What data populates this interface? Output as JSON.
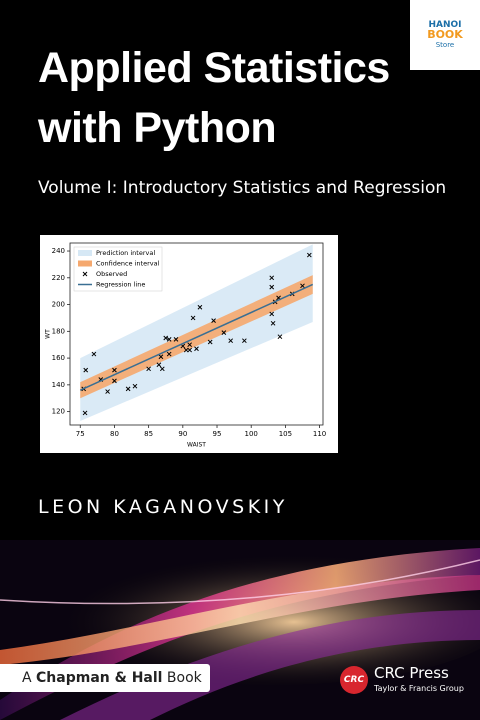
{
  "cover": {
    "title_lines": [
      "Applied Statistics",
      "with Python"
    ],
    "subtitle": "Volume I: Introductory Statistics and Regression",
    "author": "LEON KAGANOVSKIY",
    "imprint": [
      "A",
      "Chapman & Hall",
      "Book"
    ],
    "publisher": "CRC Press",
    "publisher_group": "Taylor & Francis Group",
    "publisher_logo": "CRC",
    "store": [
      "HANOI",
      "BOOK",
      "Store"
    ]
  },
  "chart_data": {
    "type": "scatter",
    "xlabel": "WAIST",
    "ylabel": "WT",
    "xlim": [
      73.5,
      110.5
    ],
    "ylim": [
      110,
      246
    ],
    "xticks": [
      75,
      80,
      85,
      90,
      95,
      100,
      105,
      110
    ],
    "yticks": [
      120,
      140,
      160,
      180,
      200,
      220,
      240
    ],
    "legend": "upper-left",
    "series": [
      {
        "name": "Prediction interval",
        "kind": "band",
        "color": "#d6e8f5",
        "x": [
          75,
          109
        ],
        "lower": [
          113,
          187
        ],
        "upper": [
          160,
          245
        ]
      },
      {
        "name": "Confidence interval",
        "kind": "band",
        "color": "#f5a86e",
        "x": [
          75,
          109
        ],
        "lower": [
          130,
          208
        ],
        "upper": [
          142,
          222
        ]
      },
      {
        "name": "Observed",
        "kind": "points",
        "color": "#000000",
        "x": [
          75.5,
          75.8,
          75.7,
          77,
          78,
          79,
          80,
          80,
          82,
          83,
          85,
          86.5,
          86.8,
          87,
          87.5,
          88,
          88,
          89,
          90,
          90.5,
          91,
          91,
          91.5,
          92,
          92.5,
          94,
          94.5,
          96,
          97,
          99,
          103,
          103,
          103,
          103.2,
          103.5,
          104,
          104.2,
          106,
          107.5,
          108.5
        ],
        "values": [
          137,
          151,
          119,
          163,
          144,
          135,
          151,
          143,
          137,
          139,
          152,
          155,
          161,
          152,
          175,
          163,
          174,
          174,
          169,
          166,
          166,
          170,
          190,
          167,
          198,
          172,
          188,
          179,
          173,
          173,
          220,
          213,
          193,
          186,
          202,
          205,
          176,
          208,
          214,
          237
        ]
      },
      {
        "name": "Regression line",
        "kind": "line",
        "color": "#3a6f93",
        "x": [
          75,
          109
        ],
        "values": [
          136,
          215
        ]
      }
    ]
  }
}
